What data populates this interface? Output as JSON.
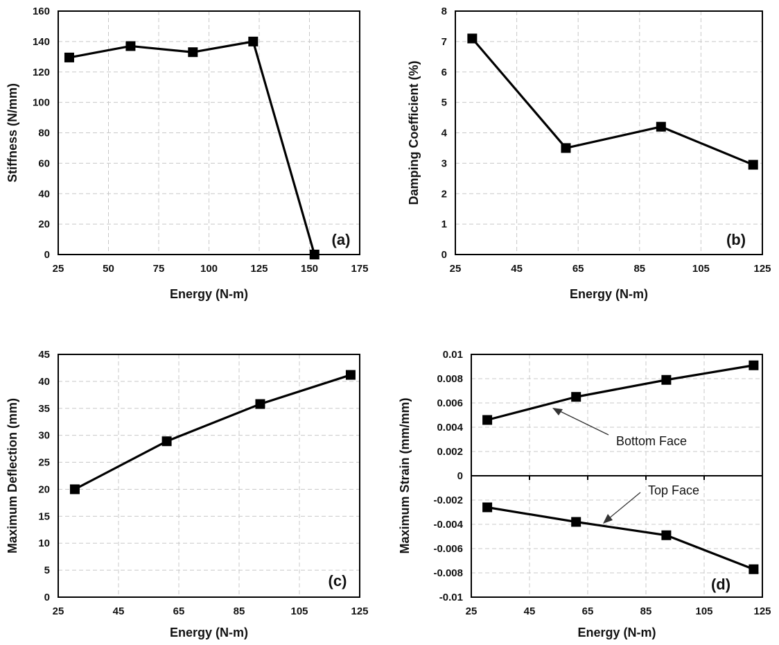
{
  "chart_data": [
    {
      "type": "line",
      "panel_label": "(a)",
      "xlabel": "Energy (N-m)",
      "ylabel": "Stiffness (N/mm)",
      "xlim": [
        25,
        175
      ],
      "ylim": [
        0,
        160
      ],
      "xticks": [
        "25",
        "50",
        "75",
        "100",
        "125",
        "150",
        "175"
      ],
      "yticks": [
        "0",
        "20",
        "40",
        "60",
        "80",
        "100",
        "120",
        "140",
        "160"
      ],
      "grid": true,
      "series": [
        {
          "x": [
            30.5,
            61,
            92,
            122,
            152.5
          ],
          "y": [
            129.5,
            137,
            133,
            140,
            0
          ]
        }
      ]
    },
    {
      "type": "line",
      "panel_label": "(b)",
      "xlabel": "Energy (N-m)",
      "ylabel": "Damping Coefficient (%)",
      "xlim": [
        25,
        125
      ],
      "ylim": [
        0,
        8
      ],
      "xticks": [
        "25",
        "45",
        "65",
        "85",
        "105",
        "125"
      ],
      "yticks": [
        "0",
        "1",
        "2",
        "3",
        "4",
        "5",
        "6",
        "7",
        "8"
      ],
      "grid": true,
      "series": [
        {
          "x": [
            30.5,
            61,
            92,
            122
          ],
          "y": [
            7.1,
            3.5,
            4.2,
            2.95
          ]
        }
      ]
    },
    {
      "type": "line",
      "panel_label": "(c)",
      "xlabel": "Energy (N-m)",
      "ylabel": "Maximum Deflection (mm)",
      "xlim": [
        25,
        125
      ],
      "ylim": [
        0,
        45
      ],
      "xticks": [
        "25",
        "45",
        "65",
        "85",
        "105",
        "125"
      ],
      "yticks": [
        "0",
        "5",
        "10",
        "15",
        "20",
        "25",
        "30",
        "35",
        "40",
        "45"
      ],
      "grid": true,
      "series": [
        {
          "x": [
            30.5,
            61,
            92,
            122
          ],
          "y": [
            20,
            28.9,
            35.8,
            41.2
          ]
        }
      ]
    },
    {
      "type": "line",
      "panel_label": "(d)",
      "xlabel": "Energy (N-m)",
      "ylabel": "Maximum Strain (mm/mm)",
      "xlim": [
        25,
        125
      ],
      "ylim": [
        -0.01,
        0.01
      ],
      "xticks": [
        "25",
        "45",
        "65",
        "85",
        "105",
        "125"
      ],
      "yticks": [
        "-0.01",
        "-0.008",
        "-0.006",
        "-0.004",
        "-0.002",
        "0",
        "0.002",
        "0.004",
        "0.006",
        "0.008",
        "0.01"
      ],
      "grid": true,
      "series": [
        {
          "name": "Bottom Face",
          "x": [
            30.5,
            61,
            92,
            122
          ],
          "y": [
            0.0046,
            0.0065,
            0.0079,
            0.0091
          ]
        },
        {
          "name": "Top Face",
          "x": [
            30.5,
            61,
            92,
            122
          ],
          "y": [
            -0.0026,
            -0.0038,
            -0.0049,
            -0.0077
          ]
        }
      ],
      "annotations": [
        "Bottom Face",
        "Top Face"
      ]
    }
  ]
}
